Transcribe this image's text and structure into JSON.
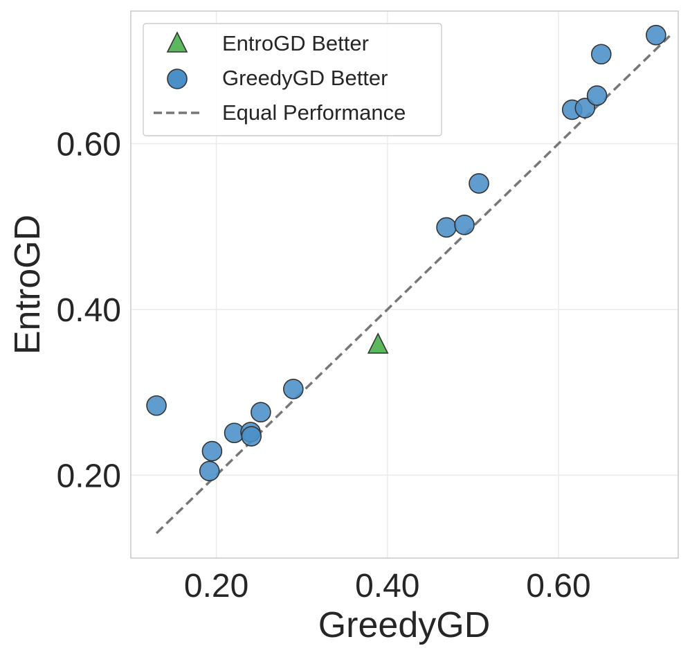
{
  "chart_data": {
    "type": "scatter",
    "title": "",
    "xlabel": "GreedyGD",
    "ylabel": "EntroGD",
    "xlim": [
      0.1,
      0.74
    ],
    "ylim": [
      0.1,
      0.76
    ],
    "xticks": [
      0.2,
      0.4,
      0.6
    ],
    "xtick_labels": [
      "0.20",
      "0.40",
      "0.60"
    ],
    "yticks": [
      0.2,
      0.4,
      0.6
    ],
    "ytick_labels": [
      "0.20",
      "0.40",
      "0.60"
    ],
    "grid": true,
    "legend_position": "top-left",
    "series": [
      {
        "name": "EntroGD Better",
        "marker": "triangle",
        "color": "#5cb85c",
        "points": [
          {
            "x": 0.389,
            "y": 0.359
          }
        ]
      },
      {
        "name": "GreedyGD Better",
        "marker": "circle",
        "color": "#4a8fc7",
        "points": [
          {
            "x": 0.13,
            "y": 0.284
          },
          {
            "x": 0.192,
            "y": 0.205
          },
          {
            "x": 0.195,
            "y": 0.229
          },
          {
            "x": 0.221,
            "y": 0.251
          },
          {
            "x": 0.24,
            "y": 0.252
          },
          {
            "x": 0.241,
            "y": 0.247
          },
          {
            "x": 0.252,
            "y": 0.276
          },
          {
            "x": 0.29,
            "y": 0.304
          },
          {
            "x": 0.469,
            "y": 0.499
          },
          {
            "x": 0.49,
            "y": 0.502
          },
          {
            "x": 0.507,
            "y": 0.552
          },
          {
            "x": 0.616,
            "y": 0.641
          },
          {
            "x": 0.631,
            "y": 0.643
          },
          {
            "x": 0.645,
            "y": 0.658
          },
          {
            "x": 0.65,
            "y": 0.708
          },
          {
            "x": 0.714,
            "y": 0.731
          }
        ]
      }
    ],
    "reference_line": {
      "name": "Equal Performance",
      "style": "dashed",
      "color": "#777777",
      "x": [
        0.13,
        0.73
      ],
      "y": [
        0.13,
        0.73
      ]
    }
  }
}
